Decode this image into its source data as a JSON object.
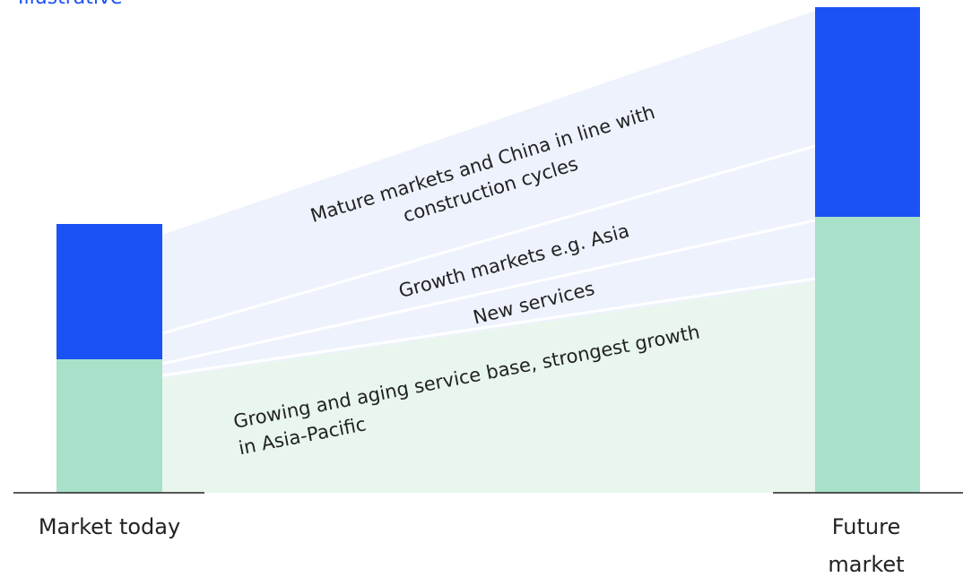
{
  "tag": "Illustrative",
  "bars": [
    {
      "label": "Market today"
    },
    {
      "label": "Future market"
    }
  ],
  "bands": [
    {
      "label": "Mature markets and China in line with construction cycles"
    },
    {
      "label": "Growth markets e.g. Asia"
    },
    {
      "label": "New services"
    },
    {
      "label": "Growing and aging service base, strongest growth in Asia-Pacific"
    }
  ]
}
